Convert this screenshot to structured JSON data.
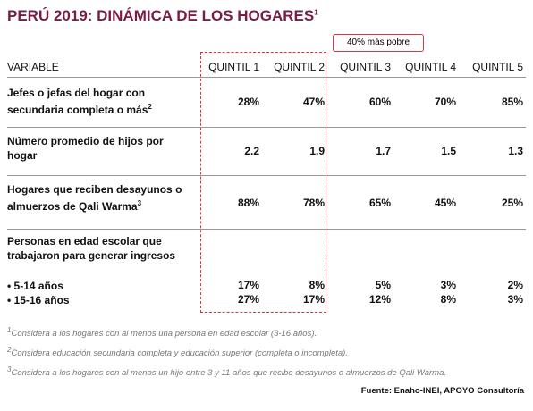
{
  "header": {
    "title": "PERÚ 2019: DINÁMICA DE LOS HOGARES",
    "title_note": "1",
    "annotation": "40% más pobre"
  },
  "table": {
    "columns": [
      "VARIABLE",
      "QUINTIL 1",
      "QUINTIL 2",
      "QUINTIL 3",
      "QUINTIL 4",
      "QUINTIL 5"
    ],
    "rows": [
      {
        "label": "Jefes o jefas del hogar con secundaria completa o más",
        "note": "2",
        "values": [
          "28%",
          "47%",
          "60%",
          "70%",
          "85%"
        ]
      },
      {
        "label": "Número promedio de hijos por hogar",
        "values": [
          "2.2",
          "1.9",
          "1.7",
          "1.5",
          "1.3"
        ]
      },
      {
        "label": "Hogares que reciben desayunos o almuerzos de Qali Warma",
        "note": "3",
        "values": [
          "88%",
          "78%",
          "65%",
          "45%",
          "25%"
        ]
      },
      {
        "label": "Personas en edad escolar que trabajaron para generar ingresos",
        "subrows": [
          {
            "label": "• 5-14 años",
            "values": [
              "17%",
              "8%",
              "5%",
              "3%",
              "2%"
            ]
          },
          {
            "label": "• 15-16 años",
            "values": [
              "27%",
              "17%",
              "12%",
              "8%",
              "3%"
            ]
          }
        ]
      }
    ]
  },
  "footnotes": [
    {
      "number": "1",
      "text": "Considera a los hogares con al menos una persona en edad escolar (3-16 años)."
    },
    {
      "number": "2",
      "text": "Considera educación secundaria completa y educación superior (completa o incompleta)."
    },
    {
      "number": "3",
      "text": "Considera a los hogares con al menos un hijo entre 3 y 11 años que recibe desayunos o almuerzos de Qali Warma."
    }
  ],
  "source": "Fuente: Enaho-INEI, APOYO Consultoría"
}
